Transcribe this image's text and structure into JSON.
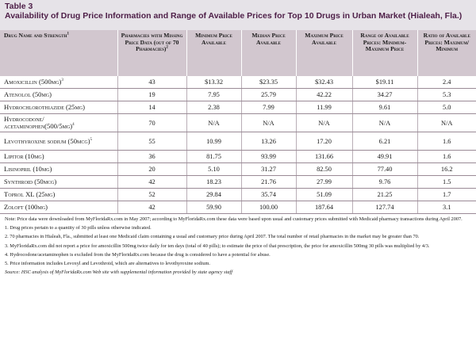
{
  "table_label": "Table 3",
  "title": "Availability of Drug Price Information and Range of Available Prices for Top 10 Drugs in Urban Market (Hialeah, Fla.)",
  "columns": [
    {
      "label": "Drug Name and Strength",
      "sup": "1"
    },
    {
      "label": "Pharmacies with Missing Price Data (out of 70 Pharmacies)",
      "sup": "2"
    },
    {
      "label": "Minimum Price Available",
      "sup": ""
    },
    {
      "label": "Median Price Available",
      "sup": ""
    },
    {
      "label": "Maximum Price Available",
      "sup": ""
    },
    {
      "label": "Range of Available Prices: Minimum-Maximum Price",
      "sup": ""
    },
    {
      "label": "Ratio of Available Prices: Maximum/ Minimum",
      "sup": ""
    }
  ],
  "rows": [
    {
      "name": "Amoxicillin (500mg)",
      "sup": "3",
      "missing": "43",
      "min": "$13.32",
      "median": "$23.35",
      "max": "$32.43",
      "range": "$19.11",
      "ratio": "2.4"
    },
    {
      "name": "Atenolol (50mg)",
      "sup": "",
      "missing": "19",
      "min": "7.95",
      "median": "25.79",
      "max": "42.22",
      "range": "34.27",
      "ratio": "5.3"
    },
    {
      "name": "Hydrochlorothiazide (25mg)",
      "sup": "",
      "missing": "14",
      "min": "2.38",
      "median": "7.99",
      "max": "11.99",
      "range": "9.61",
      "ratio": "5.0"
    },
    {
      "name": "Hydrocodone/ acetaminophen(500/5mg)",
      "sup": "4",
      "missing": "70",
      "min": "N/A",
      "median": "N/A",
      "max": "N/A",
      "range": "N/A",
      "ratio": "N/A"
    },
    {
      "name": "Levothyroxine sodium (50mcg)",
      "sup": "5",
      "missing": "55",
      "min": "10.99",
      "median": "13.26",
      "max": "17.20",
      "range": "6.21",
      "ratio": "1.6"
    },
    {
      "name": "Lipitor (10mg)",
      "sup": "",
      "missing": "36",
      "min": "81.75",
      "median": "93.99",
      "max": "131.66",
      "range": "49.91",
      "ratio": "1.6"
    },
    {
      "name": "Lisinopril (10mg)",
      "sup": "",
      "missing": "20",
      "min": "5.10",
      "median": "31.27",
      "max": "82.50",
      "range": "77.40",
      "ratio": "16.2"
    },
    {
      "name": "Synthroid (50mcg)",
      "sup": "",
      "missing": "42",
      "min": "18.23",
      "median": "21.76",
      "max": "27.99",
      "range": "9.76",
      "ratio": "1.5"
    },
    {
      "name": "Toprol XL (25mg)",
      "sup": "",
      "missing": "52",
      "min": "29.84",
      "median": "35.74",
      "max": "51.09",
      "range": "21.25",
      "ratio": "1.7"
    },
    {
      "name": "Zoloft (100mg)",
      "sup": "",
      "missing": "42",
      "min": "59.90",
      "median": "100.00",
      "max": "187.64",
      "range": "127.74",
      "ratio": "3.1"
    }
  ],
  "notes": {
    "n0": "Note: Price data were downloaded from MyFloridaRx.com in May 2007; according to MyFloridaRx.com these data were based upon usual and customary prices submitted with Medicaid pharmacy transactions during April 2007.",
    "n1": "1. Drug prices pertain to a quantity of 30 pills unless otherwise indicated.",
    "n2": "2. 70 pharmacies in Hialeah, Fla., submitted at least one Medicaid claim containing a usual and customary price during April 2007. The total number of retail pharmacies in the market may be greater than 70.",
    "n3": "3. MyFloridaRx.com did not report a price for amoxicillin 500mg twice daily for ten days (total of 40 pills); to estimate the price of that prescription, the price for amoxicillin 500mg 30 pills was multiplied by 4/3.",
    "n4": "4. Hydrocodone/acetaminophen is excluded from the MyFloridaRx.com because the drug is considered to have a potential for abuse.",
    "n5": "5. Price information includes Levoxyl and Levothroid, which are alternatives to levothyroxine sodium.",
    "source": "Source: HSC analysis of MyFloridaRx.com Web site with supplemental information provided by state agency staff"
  }
}
